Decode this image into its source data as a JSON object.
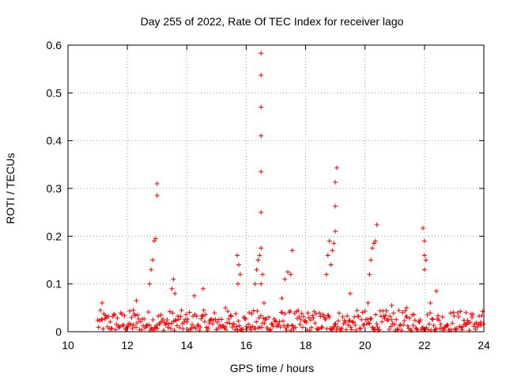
{
  "chart_data": {
    "type": "scatter",
    "title": "Day 255 of 2022, Rate Of TEC Index for receiver lago",
    "xlabel": "GPS time / hours",
    "ylabel": "ROTI / TECUs",
    "xlim": [
      10,
      24
    ],
    "ylim": [
      0,
      0.6
    ],
    "xticks": [
      10,
      12,
      14,
      16,
      18,
      20,
      22,
      24
    ],
    "yticks": [
      0,
      0.1,
      0.2,
      0.3,
      0.4,
      0.5,
      0.6
    ],
    "xtick_labels": [
      "10",
      "12",
      "14",
      "16",
      "18",
      "20",
      "22",
      "24"
    ],
    "ytick_labels": [
      "0",
      "0.1",
      "0.2",
      "0.3",
      "0.4",
      "0.5",
      "0.6"
    ],
    "grid": true,
    "marker": "+",
    "color": "#ff0000",
    "series": [
      {
        "name": "ROTI",
        "x": [
          11.15,
          12.2,
          12.3,
          12.75,
          12.8,
          12.85,
          12.9,
          12.95,
          13.0,
          13.0,
          13.5,
          13.55,
          13.6,
          14.25,
          14.55,
          15.3,
          15.7,
          15.72,
          15.75,
          15.8,
          16.3,
          16.35,
          16.4,
          16.45,
          16.5,
          16.5,
          16.5,
          16.5,
          16.5,
          16.5,
          16.5,
          16.5,
          16.55,
          16.6,
          17.2,
          17.3,
          17.4,
          17.5,
          17.55,
          18.7,
          18.75,
          18.8,
          18.85,
          18.9,
          18.95,
          19.0,
          19.0,
          19.0,
          19.05,
          19.5,
          20.1,
          20.15,
          20.2,
          20.25,
          20.3,
          20.35,
          20.4,
          20.9,
          21.4,
          21.95,
          22.0,
          22.0,
          22.0,
          22.05,
          22.2,
          22.4,
          23.4,
          23.9
        ],
        "y": [
          0.06,
          0.045,
          0.065,
          0.1,
          0.13,
          0.15,
          0.19,
          0.195,
          0.285,
          0.31,
          0.09,
          0.11,
          0.08,
          0.075,
          0.09,
          0.05,
          0.16,
          0.1,
          0.14,
          0.12,
          0.1,
          0.13,
          0.15,
          0.16,
          0.175,
          0.25,
          0.335,
          0.41,
          0.47,
          0.537,
          0.583,
          0.1,
          0.12,
          0.06,
          0.07,
          0.11,
          0.125,
          0.12,
          0.17,
          0.12,
          0.16,
          0.19,
          0.14,
          0.17,
          0.185,
          0.21,
          0.263,
          0.313,
          0.343,
          0.08,
          0.06,
          0.12,
          0.15,
          0.175,
          0.185,
          0.19,
          0.224,
          0.055,
          0.05,
          0.217,
          0.19,
          0.16,
          0.13,
          0.15,
          0.06,
          0.085,
          0.04,
          0.02
        ]
      }
    ],
    "background_noise": {
      "ymin": 0.003,
      "ymax": 0.045
    }
  }
}
